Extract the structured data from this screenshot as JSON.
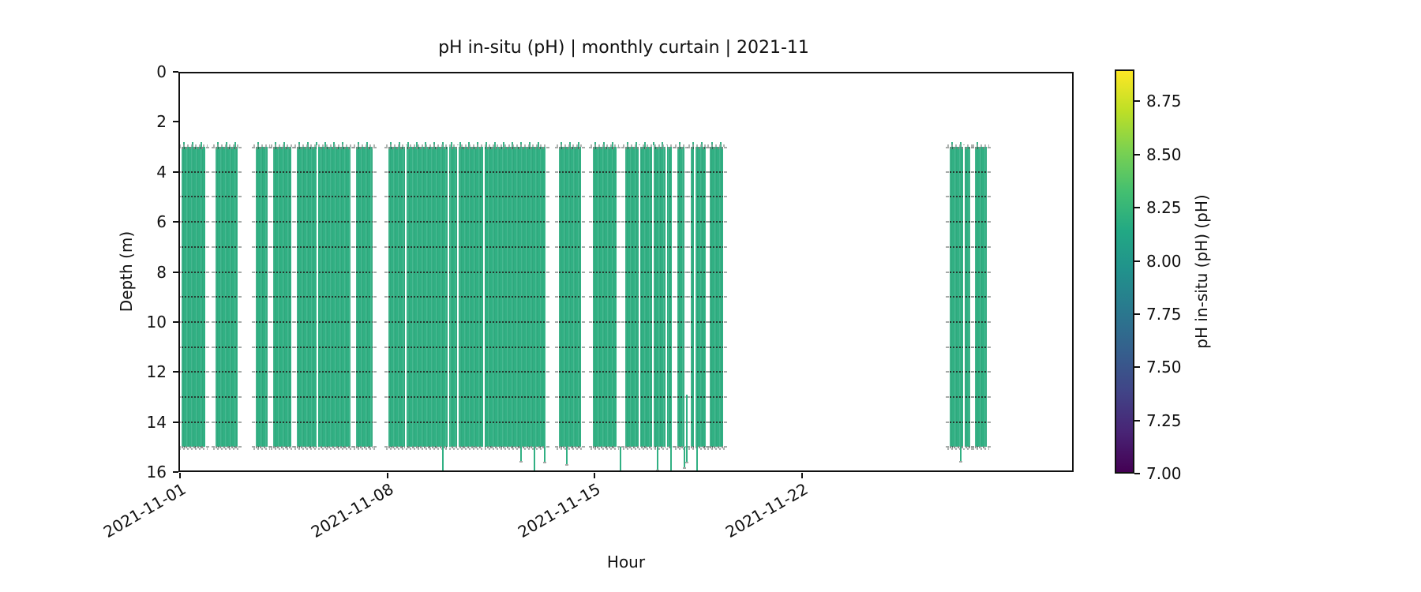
{
  "title": "pH in-situ (pH) | monthly curtain | 2021-11",
  "axes": {
    "xlabel": "Hour",
    "ylabel": "Depth (m)",
    "x_ticks": [
      {
        "label": "2021-11-01",
        "day": 0
      },
      {
        "label": "2021-11-08",
        "day": 7
      },
      {
        "label": "2021-11-15",
        "day": 14
      },
      {
        "label": "2021-11-22",
        "day": 21
      }
    ],
    "y_ticks": [
      0,
      2,
      4,
      6,
      8,
      10,
      12,
      14,
      16
    ]
  },
  "colorbar": {
    "label": "pH in-situ (pH) (pH)",
    "ticks": [
      {
        "label": "8.75",
        "value": 8.75
      },
      {
        "label": "8.50",
        "value": 8.5
      },
      {
        "label": "8.25",
        "value": 8.25
      },
      {
        "label": "8.00",
        "value": 8.0
      },
      {
        "label": "7.75",
        "value": 7.75
      },
      {
        "label": "7.50",
        "value": 7.5
      },
      {
        "label": "7.25",
        "value": 7.25
      },
      {
        "label": "7.00",
        "value": 7.0
      }
    ],
    "vmin": 7.0,
    "vmax": 8.9,
    "colormap": "viridis",
    "gradient_stops": [
      {
        "frac": 0.0,
        "color": "#440154"
      },
      {
        "frac": 0.1,
        "color": "#482475"
      },
      {
        "frac": 0.2,
        "color": "#414487"
      },
      {
        "frac": 0.3,
        "color": "#355f8d"
      },
      {
        "frac": 0.4,
        "color": "#2a788e"
      },
      {
        "frac": 0.5,
        "color": "#21918c"
      },
      {
        "frac": 0.6,
        "color": "#22a884"
      },
      {
        "frac": 0.7,
        "color": "#44bf70"
      },
      {
        "frac": 0.8,
        "color": "#7ad151"
      },
      {
        "frac": 0.9,
        "color": "#bddf26"
      },
      {
        "frac": 1.0,
        "color": "#fde725"
      }
    ]
  },
  "chart_data": {
    "type": "heatmap",
    "subtype": "monthly-curtain",
    "title": "pH in-situ (pH) | monthly curtain | 2021-11",
    "xlabel": "Hour",
    "ylabel": "Depth (m)",
    "value_label": "pH in-situ (pH) (pH)",
    "x_range_days": [
      0,
      30.2
    ],
    "x_tick_labels": [
      "2021-11-01",
      "2021-11-08",
      "2021-11-15",
      "2021-11-22"
    ],
    "x_tick_days": [
      0,
      7,
      14,
      21
    ],
    "y_range_m": [
      16,
      0
    ],
    "y_ticks_m": [
      0,
      2,
      4,
      6,
      8,
      10,
      12,
      14,
      16
    ],
    "color_range_ph": [
      7.0,
      8.9
    ],
    "colormap": "viridis",
    "observed_ph_approx": 8.2,
    "observed_color": "#31b083",
    "depth_coverage_m": [
      3,
      15
    ],
    "sensor_depths_m": [
      3,
      4,
      5,
      6,
      7,
      8,
      9,
      10,
      11,
      12,
      13,
      14,
      15
    ],
    "data_segments_days": [
      [
        0.05,
        0.85
      ],
      [
        1.2,
        1.95
      ],
      [
        2.55,
        2.95
      ],
      [
        3.15,
        3.75
      ],
      [
        3.95,
        5.75
      ],
      [
        5.95,
        6.5
      ],
      [
        7.05,
        12.35
      ],
      [
        12.8,
        13.55
      ],
      [
        13.95,
        14.75
      ],
      [
        15.05,
        16.6
      ],
      [
        16.8,
        17.05
      ],
      [
        17.25,
        17.75
      ],
      [
        17.9,
        18.35
      ],
      [
        26.0,
        26.7
      ],
      [
        26.85,
        27.25
      ]
    ],
    "hairline_gaps_days": [
      4.6,
      7.6,
      9.05,
      9.35,
      10.25,
      15.5,
      15.95,
      16.4,
      17.35,
      26.45
    ],
    "downward_spikes": [
      {
        "day": 8.85,
        "from_m": 15,
        "to_m": 15.95
      },
      {
        "day": 11.5,
        "from_m": 15,
        "to_m": 15.55
      },
      {
        "day": 11.95,
        "from_m": 15,
        "to_m": 16.0
      },
      {
        "day": 12.3,
        "from_m": 15,
        "to_m": 15.6
      },
      {
        "day": 13.05,
        "from_m": 15,
        "to_m": 15.7
      },
      {
        "day": 14.85,
        "from_m": 15,
        "to_m": 16.0
      },
      {
        "day": 16.1,
        "from_m": 15,
        "to_m": 15.9
      },
      {
        "day": 16.55,
        "from_m": 15,
        "to_m": 16.05
      },
      {
        "day": 17.0,
        "from_m": 15,
        "to_m": 15.8
      },
      {
        "day": 17.1,
        "from_m": 12.9,
        "to_m": 15.6
      },
      {
        "day": 17.45,
        "from_m": 15,
        "to_m": 15.95
      },
      {
        "day": 26.35,
        "from_m": 15,
        "to_m": 15.55
      }
    ]
  }
}
